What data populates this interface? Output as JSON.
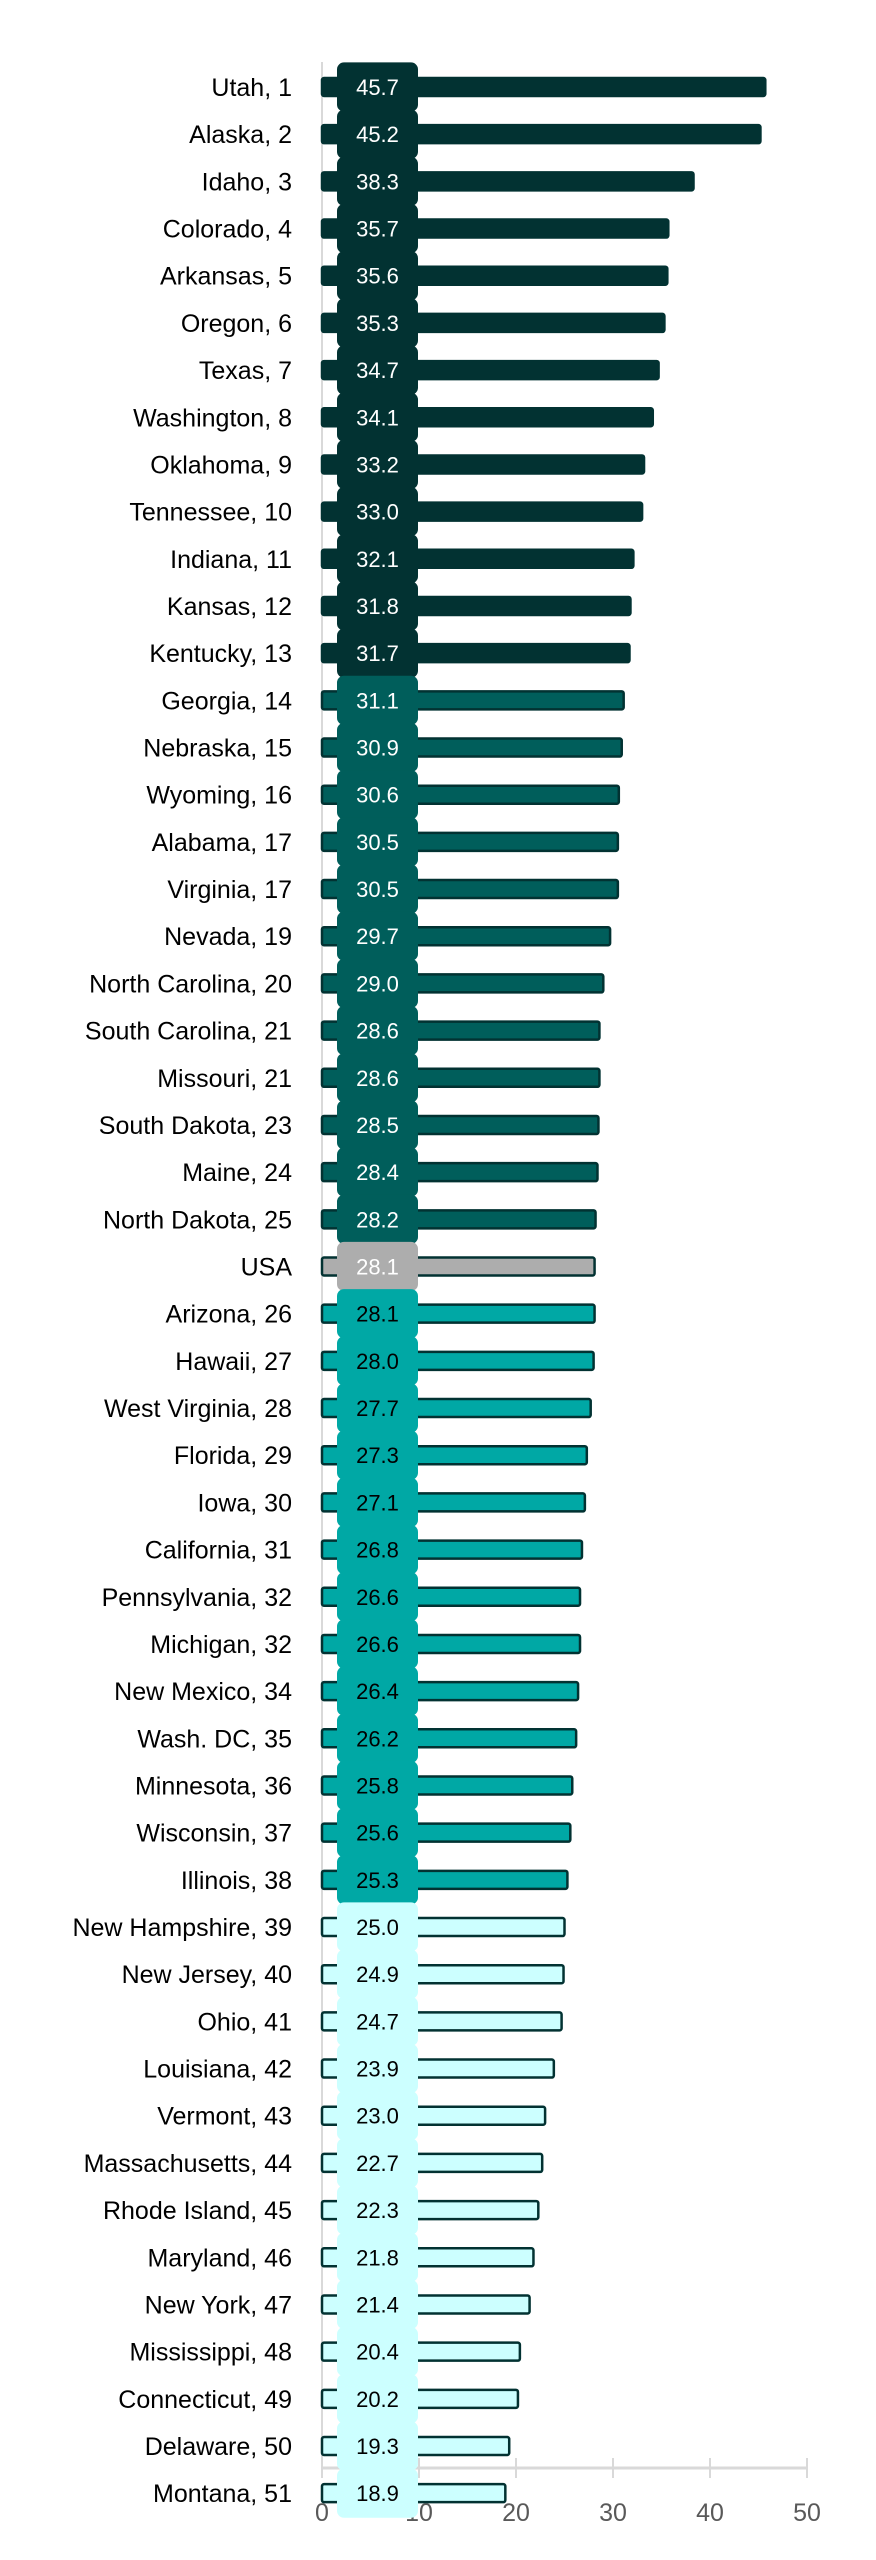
{
  "chart_data": {
    "type": "bar",
    "orientation": "horizontal",
    "title": "",
    "xlabel": "",
    "ylabel": "",
    "xlim": [
      0,
      50
    ],
    "xticks": [
      0,
      10,
      20,
      30,
      40,
      50
    ],
    "grid": false,
    "categories": [
      "Utah, 1",
      "Alaska, 2",
      "Idaho, 3",
      "Colorado, 4",
      "Arkansas, 5",
      "Oregon, 6",
      "Texas, 7",
      "Washington, 8",
      "Oklahoma, 9",
      "Tennessee, 10",
      "Indiana, 11",
      "Kansas, 12",
      "Kentucky, 13",
      "Georgia, 14",
      "Nebraska, 15",
      "Wyoming, 16",
      "Alabama, 17",
      "Virginia, 17",
      "Nevada, 19",
      "North Carolina, 20",
      "South Carolina, 21",
      "Missouri, 21",
      "South Dakota, 23",
      "Maine, 24",
      "North Dakota, 25",
      "USA",
      "Arizona, 26",
      "Hawaii, 27",
      "West Virginia, 28",
      "Florida, 29",
      "Iowa, 30",
      "California, 31",
      "Pennsylvania, 32",
      "Michigan, 32",
      "New Mexico, 34",
      "Wash. DC, 35",
      "Minnesota, 36",
      "Wisconsin, 37",
      "Illinois, 38",
      "New Hampshire, 39",
      "New Jersey, 40",
      "Ohio, 41",
      "Louisiana, 42",
      "Vermont, 43",
      "Massachusetts, 44",
      "Rhode Island, 45",
      "Maryland, 46",
      "New York, 47",
      "Mississippi, 48",
      "Connecticut, 49",
      "Delaware, 50",
      "Montana, 51"
    ],
    "values": [
      45.7,
      45.2,
      38.3,
      35.7,
      35.6,
      35.3,
      34.7,
      34.1,
      33.2,
      33.0,
      32.1,
      31.8,
      31.7,
      31.1,
      30.9,
      30.6,
      30.5,
      30.5,
      29.7,
      29.0,
      28.6,
      28.6,
      28.5,
      28.4,
      28.2,
      28.1,
      28.1,
      28.0,
      27.7,
      27.3,
      27.1,
      26.8,
      26.6,
      26.6,
      26.4,
      26.2,
      25.8,
      25.6,
      25.3,
      25.0,
      24.9,
      24.7,
      23.9,
      23.0,
      22.7,
      22.3,
      21.8,
      21.4,
      20.4,
      20.2,
      19.3,
      18.9
    ],
    "value_labels": [
      "45.7",
      "45.2",
      "38.3",
      "35.7",
      "35.6",
      "35.3",
      "34.7",
      "34.1",
      "33.2",
      "33.0",
      "32.1",
      "31.8",
      "31.7",
      "31.1",
      "30.9",
      "30.6",
      "30.5",
      "30.5",
      "29.7",
      "29.0",
      "28.6",
      "28.6",
      "28.5",
      "28.4",
      "28.2",
      "28.1",
      "28.1",
      "28.0",
      "27.7",
      "27.3",
      "27.1",
      "26.8",
      "26.6",
      "26.6",
      "26.4",
      "26.2",
      "25.8",
      "25.6",
      "25.3",
      "25.0",
      "24.9",
      "24.7",
      "23.9",
      "23.0",
      "22.7",
      "22.3",
      "21.8",
      "21.4",
      "20.4",
      "20.2",
      "19.3",
      "18.9"
    ],
    "groups": [
      0,
      0,
      0,
      0,
      0,
      0,
      0,
      0,
      0,
      0,
      0,
      0,
      0,
      1,
      1,
      1,
      1,
      1,
      1,
      1,
      1,
      1,
      1,
      1,
      1,
      4,
      2,
      2,
      2,
      2,
      2,
      2,
      2,
      2,
      2,
      2,
      2,
      2,
      2,
      3,
      3,
      3,
      3,
      3,
      3,
      3,
      3,
      3,
      3,
      3,
      3,
      3
    ],
    "group_styles": [
      {
        "fill": "#023232",
        "label_bg": "#023232",
        "label_color": "#FFFFFF"
      },
      {
        "fill": "#005E5B",
        "label_bg": "#005E5B",
        "label_color": "#FFFFFF"
      },
      {
        "fill": "#00A8A5",
        "label_bg": "#00A8A5",
        "label_color": "#000000"
      },
      {
        "fill": "#CCFFFF",
        "label_bg": "#CCFFFF",
        "label_color": "#000000"
      },
      {
        "fill": "#ADADAD",
        "label_bg": "#ADADAD",
        "label_color": "#FFFFFF"
      }
    ],
    "outline_color": "#023232",
    "axis_color": "#D9D9D9"
  }
}
